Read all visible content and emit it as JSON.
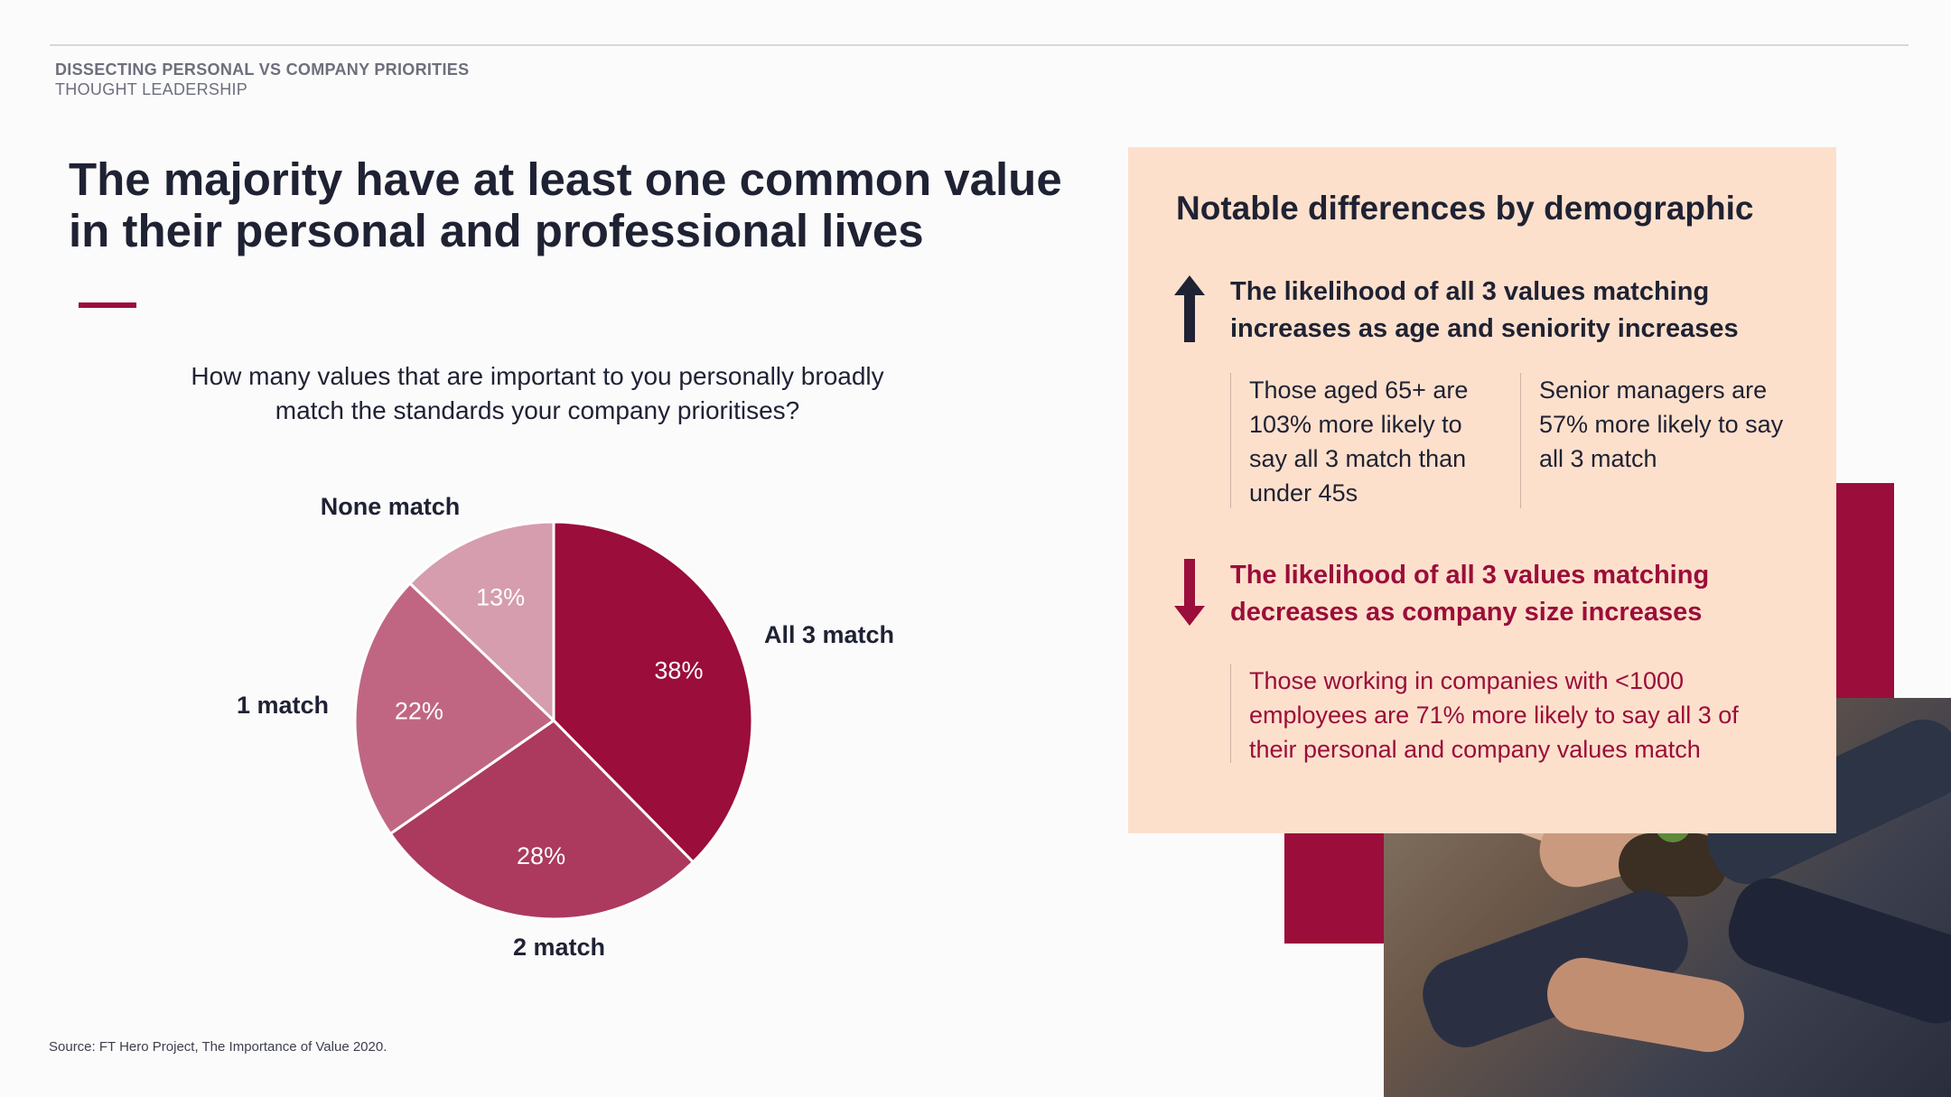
{
  "header": {
    "kicker": "DISSECTING PERSONAL VS COMPANY PRIORITIES",
    "subkicker": "THOUGHT LEADERSHIP"
  },
  "headline": "The majority have at least one common value in their personal and professional lives",
  "question": "How many values that are important to you personally broadly match the standards your company prioritises?",
  "source": "Source: FT Hero Project, The Importance of Value 2020.",
  "chart_data": {
    "type": "pie",
    "title": "",
    "slices": [
      {
        "label": "All 3 match",
        "value": 38,
        "display": "38%",
        "color": "#9b0d3a"
      },
      {
        "label": "2 match",
        "value": 28,
        "display": "28%",
        "color": "#ab3a5e"
      },
      {
        "label": "1 match",
        "value": 22,
        "display": "22%",
        "color": "#c06683"
      },
      {
        "label": "None match",
        "value": 13,
        "display": "13%",
        "color": "#d59dae"
      }
    ]
  },
  "panel": {
    "title": "Notable differences by demographic",
    "increase": {
      "title": "The likelihood of all 3 values matching increases as age and seniority increases",
      "stat_age": "Those aged 65+ are 103% more likely to say all 3 match than under 45s",
      "stat_seniority": "Senior managers are 57% more likely to say all 3 match"
    },
    "decrease": {
      "title": "The likelihood of all 3 values matching decreases as company size increases",
      "stat_size": "Those working in companies with <1000 employees are 71% more likely to say all 3 of their personal and company values match"
    }
  },
  "colors": {
    "accent": "#9b0d3a",
    "panel_bg": "#fde0cc",
    "text": "#1f2233"
  },
  "icons": {
    "up": "arrow-up-icon",
    "down": "arrow-down-icon"
  }
}
